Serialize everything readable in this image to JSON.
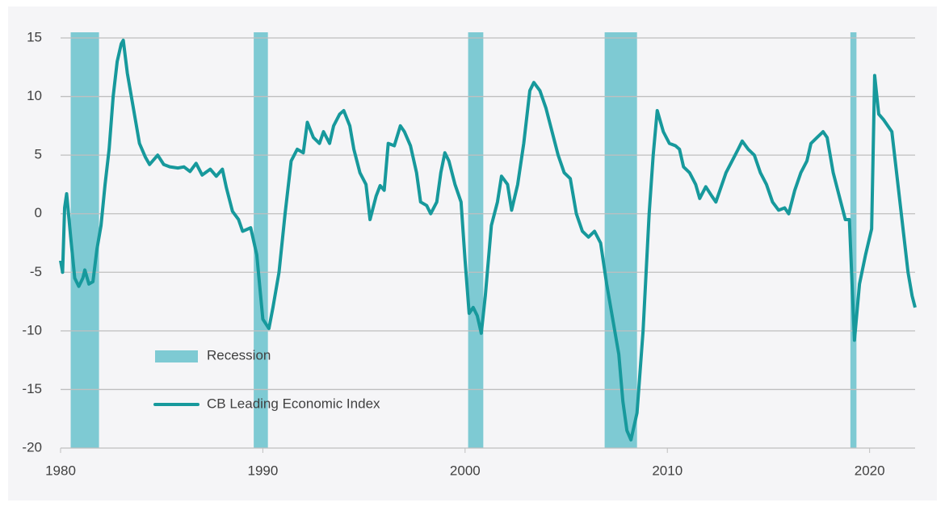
{
  "chart_data": {
    "type": "line",
    "x": [
      1980.0,
      1980.1,
      1980.2,
      1980.3,
      1980.5,
      1980.7,
      1980.9,
      1981.1,
      1981.2,
      1981.4,
      1981.6,
      1981.8,
      1982.0,
      1982.2,
      1982.4,
      1982.6,
      1982.8,
      1983.0,
      1983.1,
      1983.3,
      1983.6,
      1983.9,
      1984.2,
      1984.4,
      1984.8,
      1985.1,
      1985.4,
      1985.8,
      1986.1,
      1986.4,
      1986.7,
      1987.0,
      1987.4,
      1987.7,
      1988.0,
      1988.2,
      1988.5,
      1988.8,
      1989.0,
      1989.4,
      1989.7,
      1990.0,
      1990.3,
      1990.5,
      1990.8,
      1991.1,
      1991.4,
      1991.7,
      1992.0,
      1992.2,
      1992.5,
      1992.8,
      1993.0,
      1993.3,
      1993.5,
      1993.8,
      1994.0,
      1994.3,
      1994.5,
      1994.8,
      1995.1,
      1995.3,
      1995.6,
      1995.8,
      1996.0,
      1996.2,
      1996.5,
      1996.8,
      1997.0,
      1997.3,
      1997.6,
      1997.8,
      1998.1,
      1998.3,
      1998.6,
      1998.8,
      1999.0,
      1999.2,
      1999.5,
      1999.8,
      2000.0,
      2000.2,
      2000.4,
      2000.6,
      2000.8,
      2001.0,
      2001.3,
      2001.6,
      2001.8,
      2002.1,
      2002.3,
      2002.6,
      2002.9,
      2003.2,
      2003.4,
      2003.7,
      2004.0,
      2004.3,
      2004.6,
      2004.9,
      2005.2,
      2005.5,
      2005.8,
      2006.1,
      2006.4,
      2006.7,
      2007.0,
      2007.3,
      2007.6,
      2007.8,
      2008.0,
      2008.2,
      2008.5,
      2008.8,
      2009.1,
      2009.3,
      2009.5,
      2009.8,
      2010.1,
      2010.4,
      2010.6,
      2010.8,
      2011.1,
      2011.4,
      2011.6,
      2011.9,
      2012.2,
      2012.4,
      2012.6,
      2012.9,
      2013.2,
      2013.5,
      2013.7,
      2014.0,
      2014.3,
      2014.6,
      2014.9,
      2015.2,
      2015.5,
      2015.8,
      2016.0,
      2016.3,
      2016.6,
      2016.9,
      2017.1,
      2017.4,
      2017.7,
      2017.9,
      2018.2,
      2018.5,
      2018.8,
      2019.0,
      2019.25,
      2019.5,
      2019.8,
      2020.1,
      2020.25,
      2020.45,
      2020.7,
      2020.9,
      2021.1,
      2021.3,
      2021.6,
      2021.9,
      2022.1,
      2022.25
    ],
    "series": [
      {
        "name": "CB Leading Economic Index",
        "color": "#17999c",
        "values": [
          -4,
          -5,
          0.5,
          1.7,
          -2,
          -5.5,
          -6.2,
          -5.5,
          -4.8,
          -6,
          -5.8,
          -3,
          -1,
          2.5,
          5.5,
          10,
          13,
          14.5,
          14.8,
          12,
          9,
          6,
          4.8,
          4.2,
          5,
          4.2,
          4,
          3.9,
          4,
          3.6,
          4.3,
          3.3,
          3.8,
          3.2,
          3.8,
          2.2,
          0.2,
          -0.5,
          -1.5,
          -1.2,
          -3.5,
          -9,
          -9.8,
          -8,
          -5,
          0,
          4.5,
          5.5,
          5.2,
          7.8,
          6.5,
          6,
          7,
          6,
          7.5,
          8.5,
          8.8,
          7.5,
          5.5,
          3.5,
          2.5,
          -0.5,
          1.5,
          2.4,
          2,
          6,
          5.8,
          7.5,
          7,
          5.8,
          3.5,
          1,
          0.7,
          0,
          1,
          3.5,
          5.2,
          4.5,
          2.5,
          1,
          -4,
          -8.5,
          -8,
          -8.7,
          -10.2,
          -7,
          -1,
          1,
          3.2,
          2.5,
          0.3,
          2.5,
          6,
          10.5,
          11.2,
          10.5,
          9,
          7,
          5,
          3.5,
          3,
          0,
          -1.5,
          -2,
          -1.5,
          -2.5,
          -6,
          -9,
          -12,
          -16,
          -18.5,
          -19.3,
          -17,
          -10,
          0,
          5,
          8.8,
          7,
          6,
          5.8,
          5.5,
          4,
          3.5,
          2.5,
          1.3,
          2.3,
          1.5,
          1,
          2,
          3.5,
          4.5,
          5.5,
          6.2,
          5.5,
          5,
          3.5,
          2.5,
          1,
          0.3,
          0.5,
          0,
          2,
          3.5,
          4.5,
          6,
          6.5,
          7,
          6.5,
          3.5,
          1.5,
          -0.5,
          -0.5,
          -10.8,
          -6,
          -3.5,
          -1.3,
          11.8,
          8.5,
          8,
          7.5,
          7,
          4,
          -0.5,
          -5,
          -7,
          -8
        ]
      }
    ],
    "recessions": {
      "name": "Recession",
      "color": "#7ecad3",
      "spans": [
        [
          1980.5,
          1981.9
        ],
        [
          1989.55,
          1990.25
        ],
        [
          2000.15,
          2000.9
        ],
        [
          2006.9,
          2008.5
        ],
        [
          2019.05,
          2019.35
        ]
      ]
    },
    "xlim": [
      1980,
      2022.25
    ],
    "xticks": [
      1980,
      1990,
      2000,
      2010,
      2020
    ],
    "ylim": [
      -20,
      15
    ],
    "yticks": [
      -20,
      -15,
      -10,
      -5,
      0,
      5,
      10,
      15
    ],
    "grid": true
  }
}
